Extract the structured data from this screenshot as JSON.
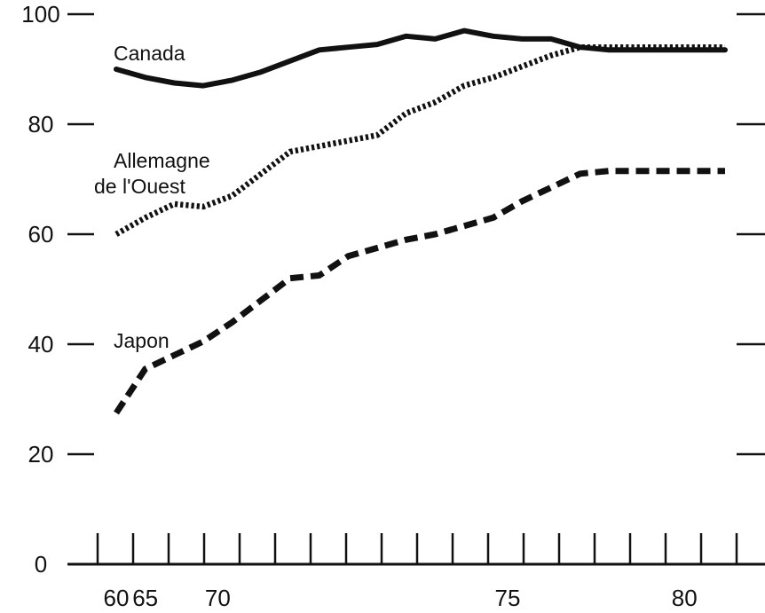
{
  "chart_data": {
    "type": "line",
    "title": "",
    "xlabel": "",
    "ylabel": "",
    "ylim": [
      0,
      100
    ],
    "xlim": [
      1960,
      1981
    ],
    "y_ticks": [
      0,
      20,
      40,
      60,
      80,
      100
    ],
    "y_tick_labels": [
      "0",
      "20",
      "40",
      "60",
      "80",
      "100"
    ],
    "x_tick_labels": [
      {
        "x": 1960,
        "label": "60"
      },
      {
        "x": 1961,
        "label": "65"
      },
      {
        "x": 1963.5,
        "label": "70"
      },
      {
        "x": 1973.5,
        "label": "75"
      },
      {
        "x": 1979.6,
        "label": "80"
      }
    ],
    "grid": false,
    "series": [
      {
        "name": "Canada",
        "style": "solid",
        "x": [
          1960,
          1961,
          1962,
          1963,
          1964,
          1965,
          1966,
          1967,
          1968,
          1969,
          1970,
          1971,
          1972,
          1973,
          1974,
          1975,
          1976,
          1977,
          1978,
          1979,
          1980,
          1981
        ],
        "values": [
          90,
          88.5,
          87.5,
          87,
          88,
          89.5,
          91.5,
          93.5,
          94,
          94.5,
          96,
          95.5,
          97,
          96,
          95.5,
          95.5,
          94,
          93.5,
          93.5,
          93.5,
          93.5,
          93.5
        ]
      },
      {
        "name": "Allemagne de l'Ouest",
        "style": "dotted",
        "x": [
          1960,
          1961,
          1962,
          1963,
          1964,
          1965,
          1966,
          1967,
          1968,
          1969,
          1970,
          1971,
          1972,
          1973,
          1974,
          1975,
          1976,
          1977,
          1978,
          1979,
          1980,
          1981
        ],
        "values": [
          60,
          63,
          65.5,
          65,
          67,
          71,
          75,
          76,
          77,
          78,
          82,
          84,
          87,
          88.5,
          90.5,
          92.5,
          94,
          94,
          94,
          94,
          94,
          94
        ]
      },
      {
        "name": "Japon",
        "style": "dashed",
        "x": [
          1960,
          1961,
          1962,
          1963,
          1964,
          1965,
          1966,
          1967,
          1968,
          1969,
          1970,
          1971,
          1972,
          1973,
          1974,
          1975,
          1976,
          1977,
          1978,
          1979,
          1980,
          1981
        ],
        "values": [
          27.5,
          35.5,
          38,
          40.5,
          44,
          48,
          52,
          52.5,
          56,
          57.5,
          59,
          60,
          61.5,
          63,
          66,
          68.5,
          71,
          71.5,
          71.5,
          71.5,
          71.5,
          71.5
        ]
      }
    ],
    "series_labels": [
      "Canada",
      "Allemagne",
      "de l'Ouest",
      "Japon"
    ]
  }
}
